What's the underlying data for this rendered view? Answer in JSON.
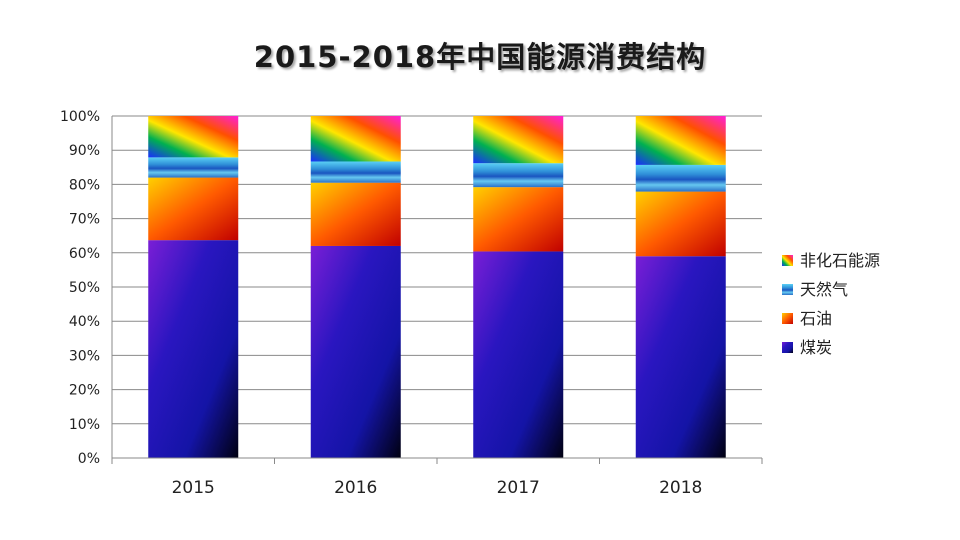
{
  "chart_data": {
    "type": "bar",
    "stacked": true,
    "title": "2015-2018年中国能源消费结构",
    "categories": [
      "2015",
      "2016",
      "2017",
      "2018"
    ],
    "series": [
      {
        "name": "煤炭",
        "values": [
          63.7,
          62.0,
          60.4,
          59.0
        ]
      },
      {
        "name": "石油",
        "values": [
          18.3,
          18.5,
          18.8,
          18.9
        ]
      },
      {
        "name": "天然气",
        "values": [
          5.9,
          6.2,
          7.0,
          7.8
        ]
      },
      {
        "name": "非化石能源",
        "values": [
          12.1,
          13.3,
          13.8,
          14.3
        ]
      }
    ],
    "ylim": [
      0,
      100
    ],
    "yticks": [
      "0%",
      "10%",
      "20%",
      "30%",
      "40%",
      "50%",
      "60%",
      "70%",
      "80%",
      "90%",
      "100%"
    ],
    "grid": true,
    "legend_position": "right",
    "colors": {
      "煤炭": "#1a1aa8",
      "石油": "#ff6a00",
      "天然气": "#3aa0e0",
      "非化石能源": "#ff2bd0"
    }
  }
}
